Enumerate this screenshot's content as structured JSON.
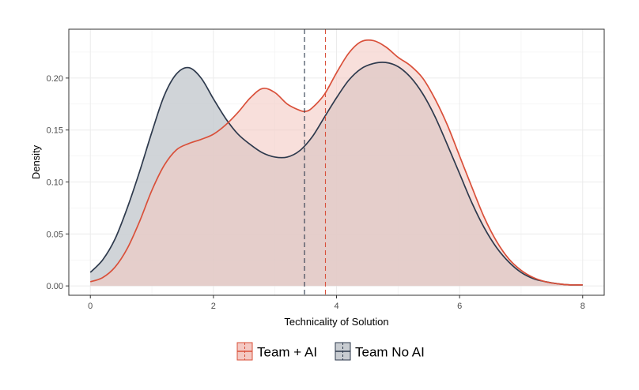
{
  "chart_data": {
    "type": "area",
    "xlabel": "Technicality of Solution",
    "ylabel": "Density",
    "xlim": [
      -0.35,
      8.35
    ],
    "ylim": [
      -0.009,
      0.247
    ],
    "x_ticks": [
      0,
      2,
      4,
      6,
      8
    ],
    "x_tick_labels": [
      "0",
      "2",
      "4",
      "6",
      "8"
    ],
    "y_ticks": [
      0.0,
      0.05,
      0.1,
      0.15,
      0.2
    ],
    "y_tick_labels": [
      "0.00",
      "0.05",
      "0.10",
      "0.15",
      "0.20"
    ],
    "grid": true,
    "legend_position": "bottom",
    "series": [
      {
        "name": "Team + AI",
        "color": "#d9503a",
        "fill": "#f4c9c3",
        "mean": 3.82,
        "x": [
          0,
          0.2,
          0.4,
          0.6,
          0.8,
          1.0,
          1.2,
          1.4,
          1.6,
          1.8,
          2.0,
          2.2,
          2.4,
          2.6,
          2.8,
          3.0,
          3.2,
          3.4,
          3.5,
          3.6,
          3.8,
          4.0,
          4.2,
          4.4,
          4.6,
          4.8,
          5.0,
          5.2,
          5.4,
          5.6,
          5.8,
          6.0,
          6.2,
          6.4,
          6.6,
          6.8,
          7.0,
          7.2,
          7.4,
          7.6,
          7.8,
          8.0
        ],
        "y": [
          0.004,
          0.008,
          0.018,
          0.036,
          0.062,
          0.092,
          0.116,
          0.131,
          0.137,
          0.141,
          0.146,
          0.155,
          0.167,
          0.181,
          0.19,
          0.186,
          0.175,
          0.169,
          0.168,
          0.171,
          0.184,
          0.205,
          0.224,
          0.235,
          0.236,
          0.23,
          0.22,
          0.212,
          0.2,
          0.18,
          0.155,
          0.125,
          0.095,
          0.066,
          0.043,
          0.026,
          0.015,
          0.008,
          0.004,
          0.002,
          0.001,
          0.001
        ]
      },
      {
        "name": "Team No AI",
        "color": "#2e3a4d",
        "fill": "#c8ccd1",
        "mean": 3.48,
        "x": [
          0,
          0.2,
          0.4,
          0.6,
          0.8,
          1.0,
          1.2,
          1.4,
          1.6,
          1.8,
          2.0,
          2.2,
          2.4,
          2.6,
          2.8,
          3.0,
          3.2,
          3.4,
          3.6,
          3.8,
          4.0,
          4.2,
          4.4,
          4.6,
          4.8,
          5.0,
          5.2,
          5.4,
          5.6,
          5.8,
          6.0,
          6.2,
          6.4,
          6.6,
          6.8,
          7.0,
          7.2,
          7.4,
          7.6,
          7.8,
          8.0
        ],
        "y": [
          0.013,
          0.025,
          0.045,
          0.075,
          0.11,
          0.148,
          0.183,
          0.204,
          0.21,
          0.2,
          0.18,
          0.161,
          0.146,
          0.136,
          0.128,
          0.124,
          0.124,
          0.13,
          0.143,
          0.162,
          0.181,
          0.198,
          0.209,
          0.214,
          0.215,
          0.211,
          0.201,
          0.185,
          0.163,
          0.136,
          0.108,
          0.08,
          0.056,
          0.037,
          0.023,
          0.013,
          0.007,
          0.004,
          0.002,
          0.001,
          0.001
        ]
      }
    ]
  }
}
